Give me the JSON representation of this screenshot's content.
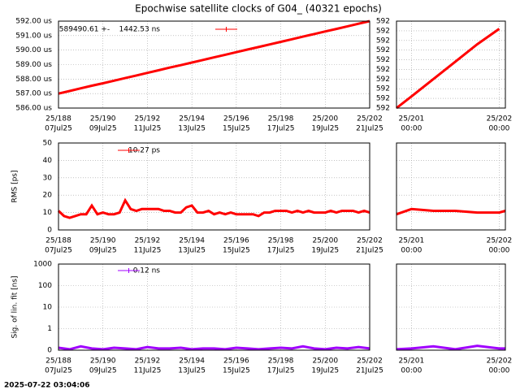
{
  "title": "Epochwise satellite clocks of G04_ (40321 epochs)",
  "timestamp": "2025-07-22 03:04:06",
  "chart_data": [
    {
      "type": "line",
      "grid": true,
      "log_y": false,
      "show_ytick_labels": true,
      "xlim": [
        188,
        202
      ],
      "ylim": [
        586,
        592
      ],
      "xticks": [
        {
          "value": 188,
          "label": "25/188",
          "date": "07Jul25"
        },
        {
          "value": 190,
          "label": "25/190",
          "date": "09Jul25"
        },
        {
          "value": 192,
          "label": "25/192",
          "date": "11Jul25"
        },
        {
          "value": 194,
          "label": "25/194",
          "date": "13Jul25"
        },
        {
          "value": 196,
          "label": "25/196",
          "date": "15Jul25"
        },
        {
          "value": 198,
          "label": "25/198",
          "date": "17Jul25"
        },
        {
          "value": 200,
          "label": "25/200",
          "date": "19Jul25"
        },
        {
          "value": 202,
          "label": "25/202",
          "date": "21Jul25"
        }
      ],
      "yticks": [
        {
          "value": 586,
          "label": "586.00 us"
        },
        {
          "value": 587,
          "label": "587.00 us"
        },
        {
          "value": 588,
          "label": "588.00 us"
        },
        {
          "value": 589,
          "label": "589.00 us"
        },
        {
          "value": 590,
          "label": "590.00 us"
        },
        {
          "value": 591,
          "label": "591.00 us"
        },
        {
          "value": 592,
          "label": "592.00 us"
        }
      ],
      "x": [
        188,
        188.5,
        189,
        189.5,
        190,
        190.5,
        191,
        191.5,
        192,
        192.5,
        193,
        193.5,
        194,
        194.5,
        195,
        195.5,
        196,
        196.5,
        197,
        197.5,
        198,
        198.5,
        199,
        199.5,
        200,
        200.5,
        201,
        201.5,
        202
      ],
      "series": [
        {
          "name": "589490.61 +-    1442.53 ns",
          "color": "#ff0000",
          "values": [
            587.0,
            587.18,
            587.36,
            587.54,
            587.71,
            587.89,
            588.07,
            588.25,
            588.43,
            588.61,
            588.79,
            588.96,
            589.14,
            589.32,
            589.5,
            589.68,
            589.86,
            590.04,
            590.21,
            590.39,
            590.57,
            590.75,
            590.93,
            591.11,
            591.29,
            591.46,
            591.64,
            591.82,
            592.0
          ]
        }
      ]
    },
    {
      "type": "line",
      "grid": true,
      "log_y": false,
      "show_ytick_labels": true,
      "xlim": [
        200.83,
        202.07
      ],
      "ylim": [
        591.55,
        592.0
      ],
      "xticks": [
        {
          "value": 201,
          "label": "25/201",
          "date": "00:00"
        },
        {
          "value": 202,
          "label": "25/202",
          "date": "00:00"
        }
      ],
      "yticks": [
        {
          "value": 591.55,
          "label": "592"
        },
        {
          "value": 591.6,
          "label": "592"
        },
        {
          "value": 591.65,
          "label": "592"
        },
        {
          "value": 591.7,
          "label": "592"
        },
        {
          "value": 591.75,
          "label": "592"
        },
        {
          "value": 591.8,
          "label": "592"
        },
        {
          "value": 591.85,
          "label": "592"
        },
        {
          "value": 591.9,
          "label": "592"
        },
        {
          "value": 591.95,
          "label": "592"
        },
        {
          "value": 592.0,
          "label": "592"
        }
      ],
      "x": [
        200.83,
        201.0,
        201.25,
        201.5,
        201.75,
        202.0
      ],
      "series": [
        {
          "color": "#ff0000",
          "values": [
            591.55,
            591.61,
            591.7,
            591.79,
            591.88,
            591.96
          ]
        }
      ]
    },
    {
      "type": "line",
      "grid": true,
      "log_y": false,
      "show_ytick_labels": true,
      "ylabel": "RMS [ps]",
      "xlim": [
        188,
        202
      ],
      "ylim": [
        0,
        50
      ],
      "xticks": [
        {
          "value": 188,
          "label": "25/188",
          "date": "07Jul25"
        },
        {
          "value": 190,
          "label": "25/190",
          "date": "09Jul25"
        },
        {
          "value": 192,
          "label": "25/192",
          "date": "11Jul25"
        },
        {
          "value": 194,
          "label": "25/194",
          "date": "13Jul25"
        },
        {
          "value": 196,
          "label": "25/196",
          "date": "15Jul25"
        },
        {
          "value": 198,
          "label": "25/198",
          "date": "17Jul25"
        },
        {
          "value": 200,
          "label": "25/200",
          "date": "19Jul25"
        },
        {
          "value": 202,
          "label": "25/202",
          "date": "21Jul25"
        }
      ],
      "yticks": [
        0,
        10,
        20,
        30,
        40,
        50
      ],
      "x": [
        188,
        188.25,
        188.5,
        188.75,
        189,
        189.25,
        189.5,
        189.75,
        190,
        190.25,
        190.5,
        190.75,
        191,
        191.25,
        191.5,
        191.75,
        192,
        192.25,
        192.5,
        192.75,
        193,
        193.25,
        193.5,
        193.75,
        194,
        194.25,
        194.5,
        194.75,
        195,
        195.25,
        195.5,
        195.75,
        196,
        196.25,
        196.5,
        196.75,
        197,
        197.25,
        197.5,
        197.75,
        198,
        198.25,
        198.5,
        198.75,
        199,
        199.25,
        199.5,
        199.75,
        200,
        200.25,
        200.5,
        200.75,
        201,
        201.25,
        201.5,
        201.75,
        202
      ],
      "series": [
        {
          "name": "10.27 ps",
          "color": "#ff0000",
          "values": [
            11,
            8,
            7,
            8,
            9,
            9,
            14,
            9,
            10,
            9,
            9,
            10,
            17,
            12,
            11,
            12,
            12,
            12,
            12,
            11,
            11,
            10,
            10,
            13,
            14,
            10,
            10,
            11,
            9,
            10,
            9,
            10,
            9,
            9,
            9,
            9,
            8,
            10,
            10,
            11,
            11,
            11,
            10,
            11,
            10,
            11,
            10,
            10,
            10,
            11,
            10,
            11,
            11,
            11,
            10,
            11,
            10
          ]
        }
      ]
    },
    {
      "type": "line",
      "grid": true,
      "log_y": false,
      "show_ytick_labels": false,
      "xlim": [
        200.83,
        202.07
      ],
      "ylim": [
        0,
        50
      ],
      "xticks": [
        {
          "value": 201,
          "label": "25/201",
          "date": "00:00"
        },
        {
          "value": 202,
          "label": "25/202",
          "date": "00:00"
        }
      ],
      "yticks": [
        0,
        10,
        20,
        30,
        40,
        50
      ],
      "x": [
        200.83,
        201.0,
        201.25,
        201.5,
        201.75,
        202.0,
        202.07
      ],
      "series": [
        {
          "color": "#ff0000",
          "values": [
            9,
            12,
            11,
            11,
            10,
            10,
            11
          ]
        }
      ]
    },
    {
      "type": "line",
      "grid": true,
      "log_y": true,
      "show_ytick_labels": true,
      "ylabel": "Sig. of lin. fit [ns]",
      "xlim": [
        188,
        202
      ],
      "ylim": [
        0.1,
        1000
      ],
      "xticks": [
        {
          "value": 188,
          "label": "25/188",
          "date": "07Jul25"
        },
        {
          "value": 190,
          "label": "25/190",
          "date": "09Jul25"
        },
        {
          "value": 192,
          "label": "25/192",
          "date": "11Jul25"
        },
        {
          "value": 194,
          "label": "25/194",
          "date": "13Jul25"
        },
        {
          "value": 196,
          "label": "25/196",
          "date": "15Jul25"
        },
        {
          "value": 198,
          "label": "25/198",
          "date": "17Jul25"
        },
        {
          "value": 200,
          "label": "25/200",
          "date": "19Jul25"
        },
        {
          "value": 202,
          "label": "25/202",
          "date": "21Jul25"
        }
      ],
      "yticks": [
        {
          "value": 0.1,
          "label": "0"
        },
        1,
        10,
        100,
        1000
      ],
      "x": [
        188,
        188.5,
        189,
        189.5,
        190,
        190.5,
        191,
        191.5,
        192,
        192.5,
        193,
        193.5,
        194,
        194.5,
        195,
        195.5,
        196,
        196.5,
        197,
        197.5,
        198,
        198.5,
        199,
        199.5,
        200,
        200.5,
        201,
        201.5,
        202
      ],
      "series": [
        {
          "name": "0.12 ns",
          "color": "#a000ff",
          "values": [
            0.13,
            0.11,
            0.15,
            0.12,
            0.11,
            0.13,
            0.12,
            0.11,
            0.14,
            0.12,
            0.12,
            0.13,
            0.11,
            0.12,
            0.12,
            0.11,
            0.13,
            0.12,
            0.11,
            0.12,
            0.13,
            0.12,
            0.15,
            0.12,
            0.11,
            0.13,
            0.12,
            0.14,
            0.12
          ]
        }
      ]
    },
    {
      "type": "line",
      "grid": true,
      "log_y": true,
      "show_ytick_labels": false,
      "xlim": [
        200.83,
        202.07
      ],
      "ylim": [
        0.1,
        1000
      ],
      "xticks": [
        {
          "value": 201,
          "label": "25/201",
          "date": "00:00"
        },
        {
          "value": 202,
          "label": "25/202",
          "date": "00:00"
        }
      ],
      "yticks": [
        {
          "value": 0.1,
          "label": "0"
        },
        1,
        10,
        100,
        1000
      ],
      "x": [
        200.83,
        201.0,
        201.25,
        201.5,
        201.75,
        202.0,
        202.07
      ],
      "series": [
        {
          "color": "#a000ff",
          "values": [
            0.11,
            0.12,
            0.15,
            0.11,
            0.16,
            0.12,
            0.12
          ]
        }
      ]
    }
  ]
}
